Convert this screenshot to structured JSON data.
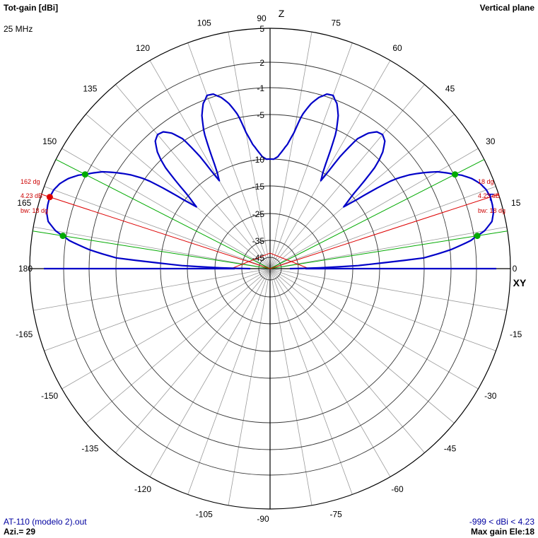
{
  "header": {
    "title": "Tot-gain [dBi]",
    "frequency": "25 MHz",
    "plane": "Vertical plane"
  },
  "footer": {
    "file": "AT-110 (modelo 2).out",
    "azimuth": "Azi.= 29",
    "range": "-999 < dBi < 4.23",
    "max_gain": "Max gain Ele:18"
  },
  "colors": {
    "pattern": "#0000c8",
    "beam_markers": "#00aa00",
    "max_marker": "#dd0000",
    "annotation": "#cc0000",
    "grid": "#000000"
  },
  "chart_data": {
    "type": "polar",
    "plane": "vertical",
    "angle_unit": "degrees",
    "axis_labels": {
      "vertical": "Z",
      "horizontal": "XY"
    },
    "angle_ticks": [
      0,
      15,
      30,
      45,
      60,
      75,
      90,
      105,
      120,
      135,
      150,
      165,
      180,
      -165,
      -150,
      -135,
      -120,
      -105,
      -90,
      -75,
      -60,
      -45,
      -30,
      -15
    ],
    "radial_ticks": [
      5,
      2,
      -1,
      -5,
      -10,
      -15,
      -25,
      -35,
      -45
    ],
    "radial_range": [
      -45,
      5
    ],
    "pattern": {
      "elevation": [
        0,
        2,
        4,
        6,
        8,
        10,
        12,
        14,
        16,
        18,
        20,
        22,
        24,
        26,
        28,
        30,
        32,
        34,
        36,
        38,
        40,
        42,
        44,
        46,
        48,
        50,
        52,
        54,
        56,
        58,
        60,
        62,
        64,
        66,
        68,
        70,
        72,
        74,
        76,
        78,
        80,
        82,
        84,
        86,
        88,
        90
      ],
      "gain": [
        -40,
        -14,
        -5,
        -0.9,
        1.6,
        3.0,
        3.8,
        4.1,
        4.2,
        4.23,
        4.1,
        3.8,
        3.3,
        2.6,
        1.6,
        0.5,
        -1.0,
        -3.0,
        -5.6,
        -9.0,
        -12.5,
        -9.5,
        -6.0,
        -3.8,
        -2.4,
        -1.9,
        -2.1,
        -3.0,
        -4.6,
        -7.5,
        -11.5,
        -9.0,
        -5.6,
        -3.0,
        -1.4,
        -0.6,
        -0.7,
        -1.4,
        -2.6,
        -4.4,
        -6.8,
        -8.2,
        -9.0,
        -9.7,
        -10.0,
        -10.0
      ]
    },
    "max_gain": {
      "elevation": 18,
      "gain_dbi": 4.23
    },
    "beamwidth_deg": 18,
    "beam_edges_deg": [
      9,
      27
    ],
    "annotations": {
      "right_angle": "18 dg",
      "right_gain": "4.23 dB",
      "right_bw": "bw: 18 dg",
      "left_angle": "162 dg",
      "left_gain": "4.23 dB",
      "left_bw": "bw: 18 dg"
    }
  }
}
